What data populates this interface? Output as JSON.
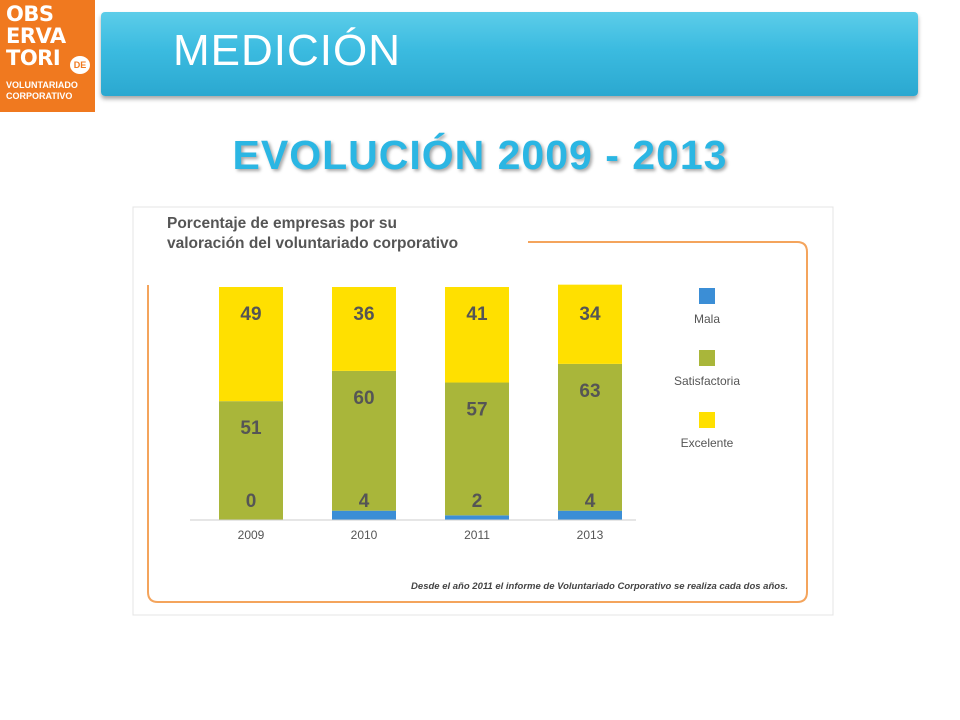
{
  "logo": {
    "lines": [
      "OBS",
      "ERVA",
      "TORI"
    ],
    "badge": "DE",
    "sub_lines": [
      "VOLUNTARIADO",
      "CORPORATIVO"
    ]
  },
  "header": {
    "title": "MEDICIÓN"
  },
  "subtitle": "EVOLUCIÓN 2009 - 2013",
  "colors": {
    "mala": "#3b8ed6",
    "satisfactoria": "#a9b63a",
    "excelente": "#ffe000",
    "accent_orange": "#f4a45c",
    "banner_blue": "#3bbbe0"
  },
  "chart_data": {
    "type": "bar",
    "stacked": true,
    "title": "Porcentaje de empresas por su valoración del voluntariado corporativo",
    "title_lines": [
      "Porcentaje de empresas por su",
      "valoración del voluntariado corporativo"
    ],
    "categories": [
      "2009",
      "2010",
      "2011",
      "2013"
    ],
    "series": [
      {
        "name": "Mala",
        "values": [
          0,
          4,
          2,
          4
        ]
      },
      {
        "name": "Satisfactoria",
        "values": [
          51,
          60,
          57,
          63
        ]
      },
      {
        "name": "Excelente",
        "values": [
          49,
          36,
          41,
          34
        ]
      }
    ],
    "ylim": [
      0,
      100
    ],
    "legend_position": "right",
    "footnote": "Desde el año 2011 el informe de Voluntariado Corporativo se realiza cada dos años."
  }
}
